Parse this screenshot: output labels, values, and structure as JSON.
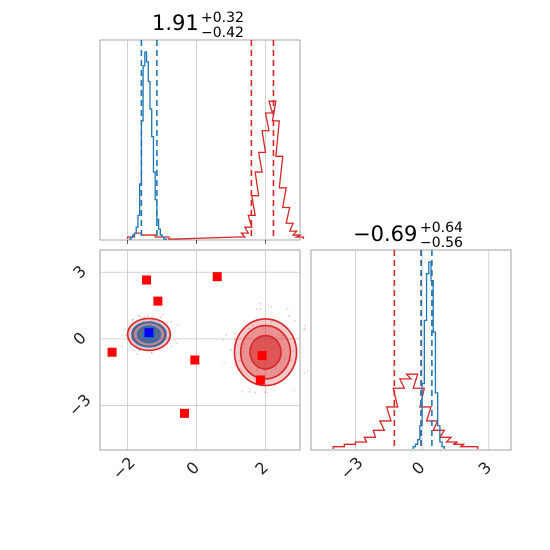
{
  "chart_data": {
    "type": "corner",
    "parameters": [
      {
        "title": {
          "value": "1.91",
          "plus": "+0.32",
          "minus": "−0.42"
        }
      },
      {
        "title": {
          "value": "−0.69",
          "plus": "+0.64",
          "minus": "−0.56"
        }
      }
    ],
    "xlim": [
      -2.8,
      3.0
    ],
    "ylim": [
      -5.0,
      4.0
    ],
    "x_ticks": [
      {
        "v": -2,
        "label": "−2"
      },
      {
        "v": 0,
        "label": "0"
      },
      {
        "v": 2,
        "label": "2"
      }
    ],
    "y_ticks": [
      {
        "v": 3,
        "label": "3"
      },
      {
        "v": 0,
        "label": "0"
      },
      {
        "v": -3,
        "label": "−3"
      }
    ],
    "marg2_ticks": [
      {
        "v": -3,
        "label": "−3"
      },
      {
        "v": 0,
        "label": "0"
      },
      {
        "v": 3,
        "label": "3"
      }
    ],
    "marg2_xlim": [
      -5.0,
      4.0
    ],
    "colors": {
      "blue": "#1f77b4",
      "red": "#d62728",
      "marker_red": "#ff0000",
      "marker_blue": "#0000ff"
    },
    "blue_quantiles_x": [
      -1.6,
      -1.15
    ],
    "red_quantiles_x": [
      1.59,
      2.23
    ],
    "blue_quantiles_y": [
      -0.04,
      0.44
    ],
    "red_quantiles_y": [
      -1.25,
      -0.05
    ],
    "blue_hist_x": {
      "bins": [
        -1.95,
        -1.9,
        -1.85,
        -1.8,
        -1.75,
        -1.7,
        -1.65,
        -1.6,
        -1.55,
        -1.5,
        -1.45,
        -1.4,
        -1.35,
        -1.3,
        -1.25,
        -1.2,
        -1.15,
        -1.1,
        -1.05,
        -1.0,
        -0.95,
        -0.9
      ],
      "counts": [
        0,
        1,
        2,
        3,
        6,
        12,
        28,
        60,
        88,
        95,
        90,
        80,
        66,
        52,
        34,
        20,
        10,
        5,
        2,
        1,
        0,
        0
      ]
    },
    "red_hist_x": {
      "bins": [
        -2.0,
        -1.8,
        -1.6,
        -1.4,
        -1.2,
        -1.0,
        -0.8,
        1.2,
        1.3,
        1.4,
        1.5,
        1.6,
        1.7,
        1.8,
        1.9,
        2.0,
        2.1,
        2.2,
        2.3,
        2.4,
        2.5,
        2.6,
        2.7,
        2.8,
        2.9
      ],
      "counts": [
        1,
        3,
        2,
        2,
        1,
        1,
        0,
        1,
        3,
        6,
        12,
        22,
        34,
        44,
        55,
        64,
        70,
        60,
        42,
        26,
        16,
        8,
        4,
        2,
        1
      ]
    },
    "blue_hist_y": {
      "bins": [
        -0.4,
        -0.3,
        -0.2,
        -0.1,
        0.0,
        0.1,
        0.2,
        0.3,
        0.4,
        0.5,
        0.6,
        0.7,
        0.8,
        0.9
      ],
      "counts": [
        1,
        2,
        4,
        10,
        28,
        55,
        75,
        80,
        72,
        50,
        24,
        10,
        3,
        1
      ]
    },
    "red_hist_y": {
      "bins": [
        -4.0,
        -3.5,
        -3.0,
        -2.6,
        -2.2,
        -1.9,
        -1.6,
        -1.3,
        -1.0,
        -0.7,
        -0.4,
        -0.1,
        0.2,
        0.5,
        0.8,
        1.1,
        1.4,
        1.7,
        2.0
      ],
      "counts": [
        1,
        2,
        3,
        5,
        8,
        12,
        18,
        26,
        30,
        32,
        26,
        18,
        12,
        8,
        5,
        3,
        2,
        1,
        1
      ]
    },
    "red_markers": [
      [
        -2.45,
        -0.6
      ],
      [
        -1.45,
        2.65
      ],
      [
        -1.12,
        1.7
      ],
      [
        0.6,
        2.8
      ],
      [
        -0.05,
        -0.95
      ],
      [
        -0.35,
        -3.35
      ],
      [
        1.9,
        -0.75
      ],
      [
        1.85,
        -1.85
      ]
    ],
    "blue_marker": [
      -1.38,
      0.28
    ],
    "blue_blob": {
      "cx": -1.38,
      "cy": 0.2,
      "rx": 0.55,
      "ry": 0.62
    },
    "red_blob_left": {
      "cx": -1.38,
      "cy": 0.2,
      "rx": 0.62,
      "ry": 0.72
    },
    "red_blob_right": {
      "cx": 2.0,
      "cy": -0.6,
      "rx": 0.9,
      "ry": 1.5
    }
  }
}
